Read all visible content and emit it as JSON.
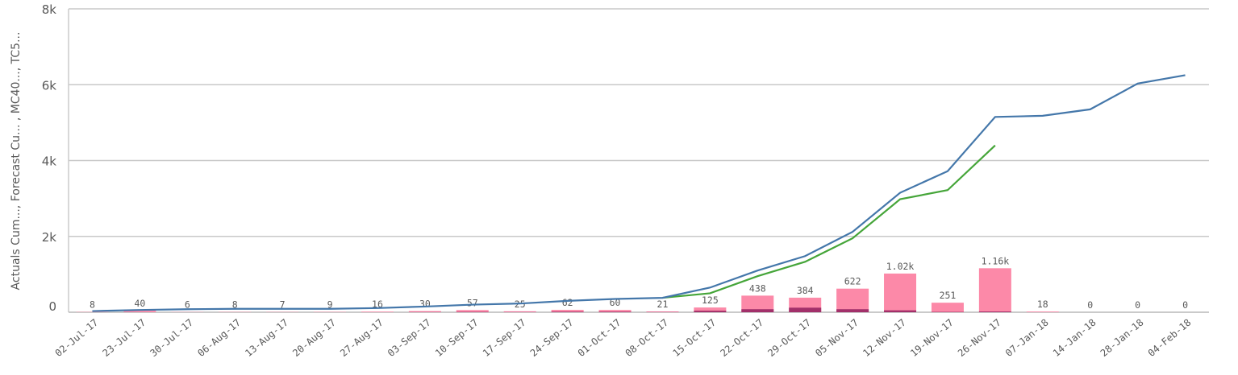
{
  "chart_data": {
    "type": "combo",
    "y_label": "Actuals Cum..., Forecast Cu... , MC40..., TC5...",
    "categories": [
      "02-Jul-17",
      "23-Jul-17",
      "30-Jul-17",
      "06-Aug-17",
      "13-Aug-17",
      "20-Aug-17",
      "27-Aug-17",
      "03-Sep-17",
      "10-Sep-17",
      "17-Sep-17",
      "24-Sep-17",
      "01-Oct-17",
      "08-Oct-17",
      "15-Oct-17",
      "22-Oct-17",
      "29-Oct-17",
      "05-Nov-17",
      "12-Nov-17",
      "19-Nov-17",
      "26-Nov-17",
      "07-Jan-18",
      "14-Jan-18",
      "28-Jan-18",
      "04-Feb-18"
    ],
    "series": [
      {
        "kind": "bar",
        "color": "#fc89a8",
        "values": [
          8,
          40,
          6,
          8,
          7,
          9,
          16,
          30,
          57,
          25,
          62,
          60,
          21,
          125,
          438,
          384,
          622,
          1020,
          251,
          1160,
          18,
          0,
          0,
          0
        ],
        "value_labels": [
          "8",
          "40",
          "6",
          "8",
          "7",
          "9",
          "16",
          "30",
          "57",
          "25",
          "62",
          "60",
          "21",
          "125",
          "438",
          "384",
          "622",
          "1.02k",
          "251",
          "1.16k",
          "18",
          "0",
          "0",
          "0"
        ]
      },
      {
        "kind": "bar",
        "color": "#a2306a",
        "values": [
          0,
          0,
          0,
          0,
          0,
          0,
          0,
          5,
          10,
          5,
          15,
          15,
          5,
          40,
          80,
          120,
          80,
          50,
          10,
          20,
          0,
          0,
          0,
          0
        ]
      },
      {
        "kind": "line",
        "color": "#45a539",
        "values": [
          null,
          null,
          null,
          null,
          null,
          null,
          null,
          null,
          null,
          null,
          null,
          null,
          380,
          500,
          950,
          1330,
          1950,
          2980,
          3220,
          4400,
          null,
          null,
          null,
          null
        ]
      },
      {
        "kind": "line",
        "color": "#4477aa",
        "values": [
          30,
          60,
          80,
          90,
          90,
          90,
          110,
          150,
          200,
          230,
          300,
          350,
          380,
          650,
          1100,
          1480,
          2120,
          3150,
          3720,
          5150,
          5180,
          5350,
          6030,
          6250
        ]
      }
    ],
    "ylim": [
      0,
      8000
    ],
    "yticks": [
      {
        "value": 0,
        "label": "0"
      },
      {
        "value": 2000,
        "label": "2k"
      },
      {
        "value": 4000,
        "label": "4k"
      },
      {
        "value": 6000,
        "label": "6k"
      },
      {
        "value": 8000,
        "label": "8k"
      }
    ],
    "grid": true
  }
}
